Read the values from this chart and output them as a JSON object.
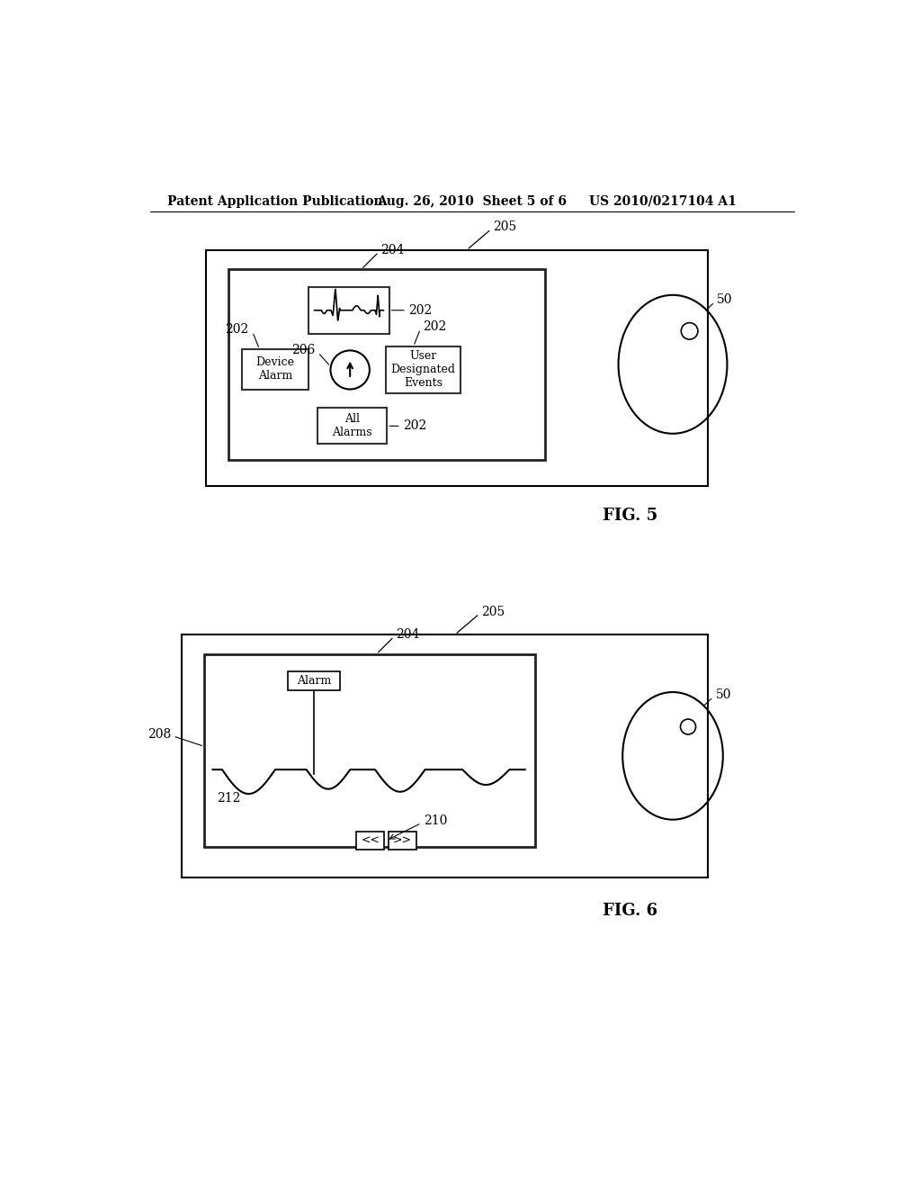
{
  "bg_color": "#ffffff",
  "header_left": "Patent Application Publication",
  "header_mid": "Aug. 26, 2010  Sheet 5 of 6",
  "header_right": "US 2010/0217104 A1",
  "fig5_label": "FIG. 5",
  "fig6_label": "FIG. 6",
  "label_205_fig5": "205",
  "label_204_fig5": "204",
  "label_202_ecg": "202",
  "label_202_device": "202",
  "label_206": "206",
  "label_202_user": "202",
  "label_202_all": "202",
  "label_50_fig5": "50",
  "label_205_fig6": "205",
  "label_204_fig6": "204",
  "label_208": "208",
  "label_212": "212",
  "label_210": "210",
  "label_50_fig6": "50",
  "text_device_alarm": "Device\nAlarm",
  "text_user_events": "User\nDesignated\nEvents",
  "text_all_alarms": "All\nAlarms",
  "text_alarm": "Alarm"
}
